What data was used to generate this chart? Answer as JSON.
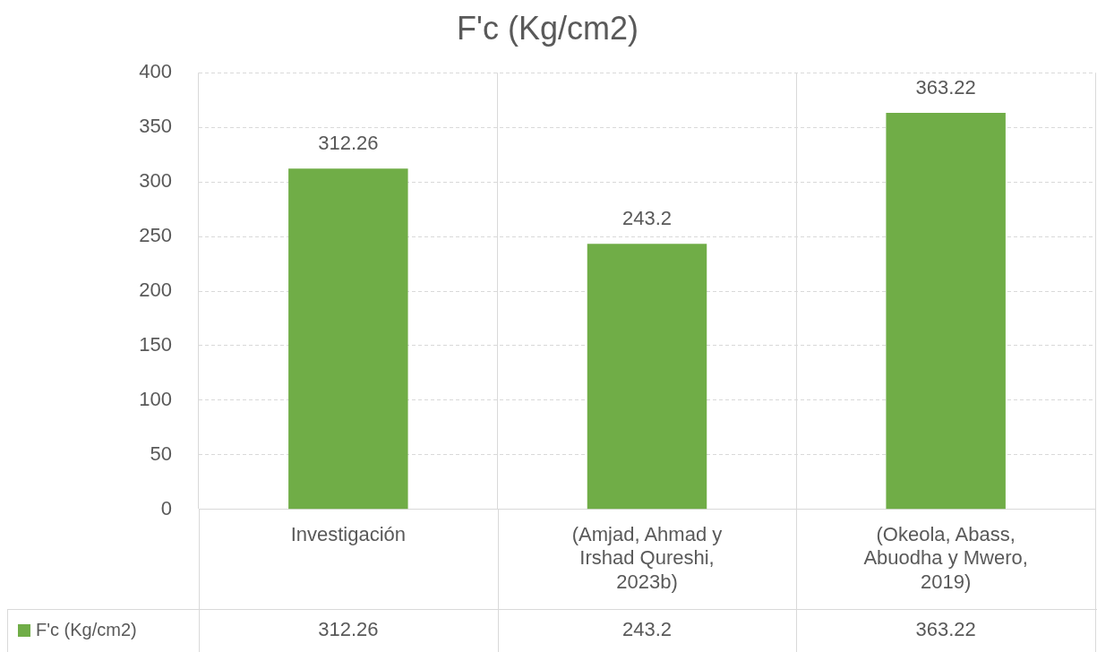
{
  "chart_data": {
    "type": "bar",
    "title": "F'c (Kg/cm2)",
    "categories": [
      "Investigación",
      "(Amjad, Ahmad y Irshad Qureshi, 2023b)",
      "(Okeola, Abass, Abuodha y Mwero, 2019)"
    ],
    "series": [
      {
        "name": "F'c (Kg/cm2)",
        "color": "#70ad47",
        "values": [
          312.26,
          243.2,
          363.22
        ],
        "value_labels": [
          "312.26",
          "243.2",
          "363.22"
        ]
      }
    ],
    "annotations": [
      "312.26",
      "243.2",
      "363.22"
    ],
    "ylim": [
      0,
      400
    ],
    "yticks": [
      0,
      50,
      100,
      150,
      200,
      250,
      300,
      350,
      400
    ],
    "grid": true,
    "data_labels": true
  }
}
